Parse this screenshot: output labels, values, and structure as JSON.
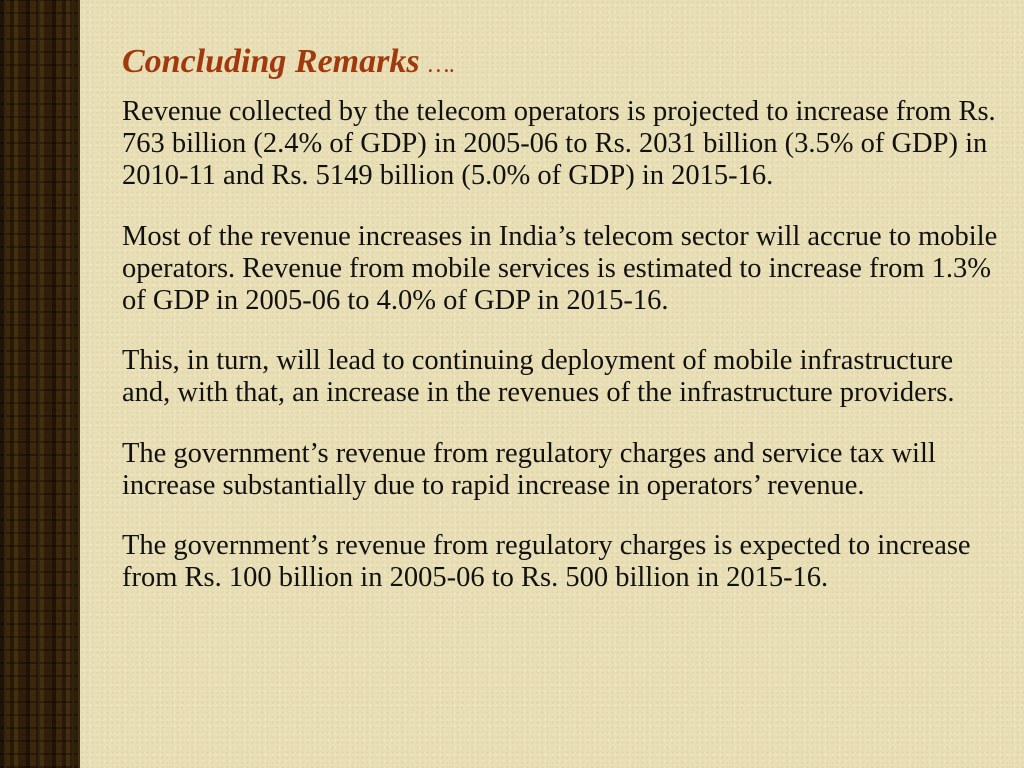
{
  "slide": {
    "title": "Concluding Remarks",
    "title_suffix": "….",
    "paragraphs": [
      "Revenue collected by the telecom operators is projected to increase from Rs. 763 billion (2.4% of GDP) in 2005-06 to Rs. 2031 billion (3.5% of GDP) in 2010-11 and Rs. 5149 billion (5.0% of GDP) in 2015-16.",
      "Most of the revenue increases in India’s telecom sector will accrue to mobile operators. Revenue from mobile services is estimated to increase from 1.3% of GDP in 2005-06 to 4.0% of GDP in 2015-16.",
      "This, in turn, will lead to continuing deployment of mobile infrastructure and, with that, an increase in the revenues of the infrastructure providers.",
      "The government’s revenue from regulatory charges and service tax will increase substantially due to rapid increase in operators’ revenue.",
      "The government’s revenue from regulatory charges is expected to increase from Rs. 100 billion in 2005-06 to Rs. 500 billion in 2015-16."
    ]
  },
  "colors": {
    "background": "#e9dfb6",
    "title": "#a03a0e",
    "text": "#111111",
    "side_strip": "#6f5a33"
  }
}
